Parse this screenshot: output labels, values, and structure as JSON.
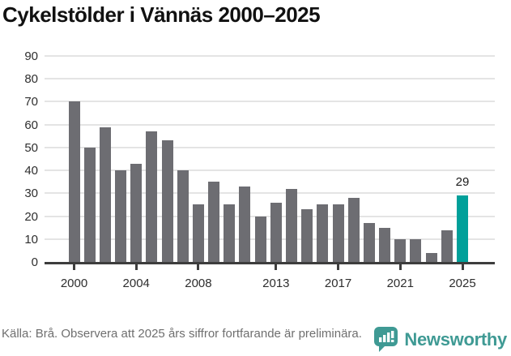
{
  "title": "Cykelstölder i Vännäs 2000–2025",
  "chart_data": {
    "type": "bar",
    "title": "Cykelstölder i Vännäs 2000–2025",
    "categories": [
      "2000",
      "2001",
      "2002",
      "2003",
      "2004",
      "2005",
      "2006",
      "2007",
      "2008",
      "2009",
      "2010",
      "2011",
      "2012",
      "2013",
      "2014",
      "2015",
      "2016",
      "2017",
      "2018",
      "2019",
      "2020",
      "2021",
      "2022",
      "2023",
      "2024",
      "2025"
    ],
    "values": [
      70,
      50,
      59,
      40,
      43,
      57,
      53,
      40,
      25,
      35,
      25,
      33,
      20,
      26,
      32,
      23,
      25,
      25,
      28,
      17,
      15,
      10,
      10,
      4,
      14,
      29
    ],
    "highlight_index": 25,
    "highlight_label": "29",
    "xlabel": "",
    "ylabel": "",
    "ylim": [
      0,
      90
    ],
    "y_ticks": [
      "0",
      "10",
      "20",
      "30",
      "40",
      "50",
      "60",
      "70",
      "80",
      "90"
    ],
    "x_tick_labels": [
      "2000",
      "2004",
      "2008",
      "2013",
      "2017",
      "2021",
      "2025"
    ],
    "x_tick_indices": [
      0,
      4,
      8,
      13,
      17,
      21,
      25
    ],
    "grid": true,
    "legend": "none",
    "bar_color": "#6d6d72",
    "highlight_color": "#00a09a"
  },
  "footer": {
    "source_note": "Källa: Brå. Observera att 2025 års siffror fortfarande är preliminära.",
    "brand": "Newsworthy"
  },
  "colors": {
    "axis": "#3d3d3d",
    "gridline": "#e4e4e4",
    "brand_teal": "#3f9a94"
  }
}
